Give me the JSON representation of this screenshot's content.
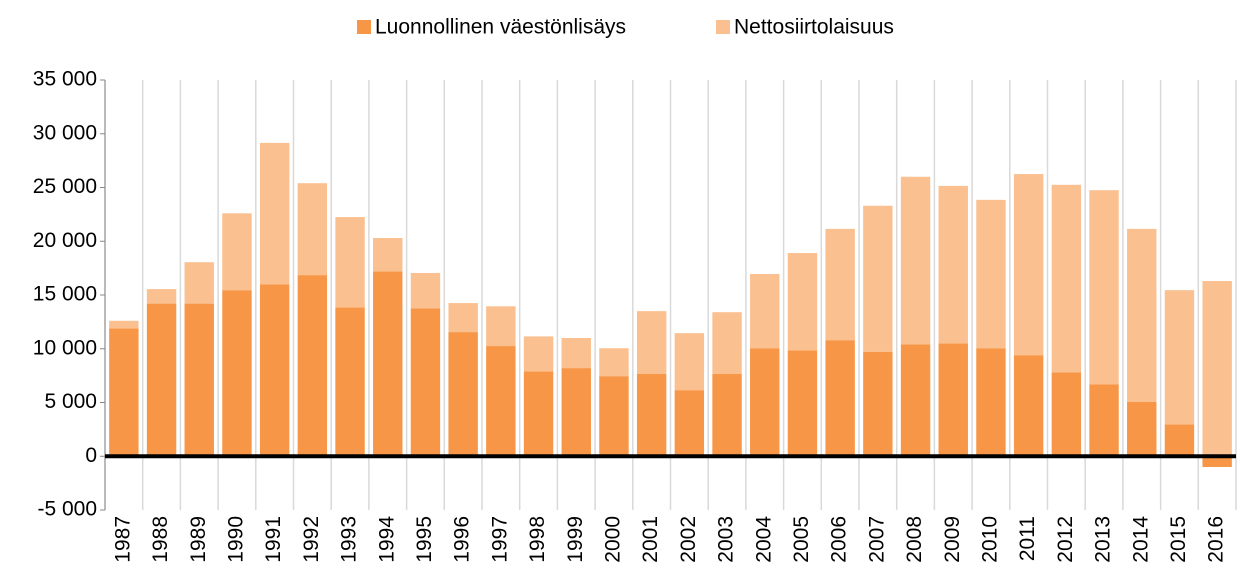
{
  "chart_data": {
    "type": "stacked_bar",
    "categories": [
      "1987",
      "1988",
      "1989",
      "1990",
      "1991",
      "1992",
      "1993",
      "1994",
      "1995",
      "1996",
      "1997",
      "1998",
      "1999",
      "2000",
      "2001",
      "2002",
      "2003",
      "2004",
      "2005",
      "2006",
      "2007",
      "2008",
      "2009",
      "2010",
      "2011",
      "2012",
      "2013",
      "2014",
      "2015",
      "2016"
    ],
    "series": [
      {
        "name": "Luonnollinen väestönlisäys",
        "color": "#f79646",
        "values": [
          11900,
          14200,
          14200,
          15450,
          16000,
          16850,
          13850,
          17200,
          13750,
          11550,
          10250,
          7900,
          8200,
          7450,
          7650,
          6150,
          7650,
          10050,
          9850,
          10800,
          9700,
          10400,
          10500,
          10050,
          9400,
          7800,
          6700,
          5050,
          2950,
          -1000
        ]
      },
      {
        "name": "Nettosiirtolaisuus",
        "color": "#fac090",
        "values": [
          700,
          1350,
          3850,
          7150,
          13150,
          8550,
          8400,
          3100,
          3300,
          2700,
          3700,
          3250,
          2800,
          2600,
          5850,
          5300,
          5750,
          6900,
          9050,
          10350,
          13600,
          15600,
          14650,
          13800,
          16850,
          17450,
          18050,
          16100,
          12500,
          16300
        ]
      }
    ],
    "ylim": [
      -5000,
      35000
    ],
    "yticks": [
      {
        "value": -5000,
        "label": "-5 000"
      },
      0,
      {
        "value": 5000,
        "label": "5 000"
      },
      {
        "value": 10000,
        "label": "10 000"
      },
      {
        "value": 15000,
        "label": "15 000"
      },
      {
        "value": 20000,
        "label": "20 000"
      },
      {
        "value": 25000,
        "label": "25 000"
      },
      {
        "value": 30000,
        "label": "30 000"
      },
      {
        "value": 35000,
        "label": "35 000"
      }
    ],
    "legend": "top"
  }
}
